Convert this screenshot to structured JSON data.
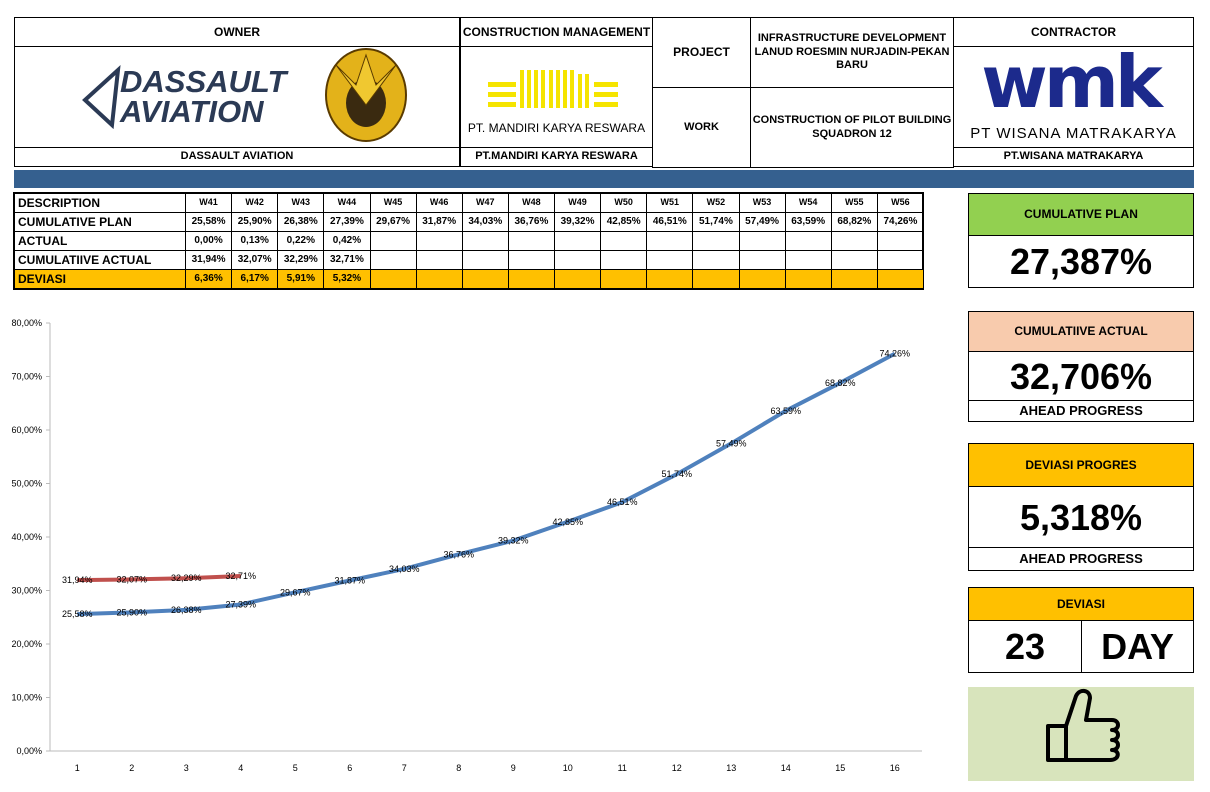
{
  "header": {
    "owner": {
      "title": "OWNER",
      "logo": [
        "DASSAULT",
        "AVIATION"
      ],
      "name": "DASSAULT AVIATION"
    },
    "construction_management": {
      "title": "CONSTRUCTION MANAGEMENT",
      "logo_text": "PT. MANDIRI KARYA RESWARA",
      "name": "PT.MANDIRI KARYA RESWARA"
    },
    "project": {
      "label": "PROJECT",
      "value": "INFRASTRUCTURE DEVELOPMENT LANUD ROESMIN NURJADIN-PEKAN BARU"
    },
    "work": {
      "label": "WORK",
      "value": "CONSTRUCTION OF PILOT BUILDING SQUADRON 12"
    },
    "contractor": {
      "title": "CONTRACTOR",
      "logo": "wmk",
      "logo_text": "PT WISANA MATRAKARYA",
      "name": "PT.WISANA MATRAKARYA"
    }
  },
  "table": {
    "header": [
      "DESCRIPTION",
      "W41",
      "W42",
      "W43",
      "W44",
      "W45",
      "W46",
      "W47",
      "W48",
      "W49",
      "W50",
      "W51",
      "W52",
      "W53",
      "W54",
      "W55",
      "W56"
    ],
    "rows": [
      [
        "CUMULATIVE PLAN",
        "25,58%",
        "25,90%",
        "26,38%",
        "27,39%",
        "29,67%",
        "31,87%",
        "34,03%",
        "36,76%",
        "39,32%",
        "42,85%",
        "46,51%",
        "51,74%",
        "57,49%",
        "63,59%",
        "68,82%",
        "74,26%"
      ],
      [
        "ACTUAL",
        "0,00%",
        "0,13%",
        "0,22%",
        "0,42%"
      ],
      [
        "CUMULATIIVE ACTUAL",
        "31,94%",
        "32,07%",
        "32,29%",
        "32,71%"
      ],
      [
        "DEVIASI",
        "6,36%",
        "6,17%",
        "5,91%",
        "5,32%"
      ]
    ]
  },
  "panels": [
    {
      "title": "CUMULATIVE PLAN",
      "value": "27,387%"
    },
    {
      "title": "CUMULATIIVE ACTUAL",
      "value": "32,706%",
      "note": "AHEAD PROGRESS"
    },
    {
      "title": "DEVIASI PROGRES",
      "value": "5,318%",
      "note": "AHEAD PROGRESS"
    },
    {
      "title": "DEVIASI",
      "value": "23",
      "unit": "DAY"
    }
  ],
  "chart_data": {
    "type": "line",
    "categories": [
      "1",
      "2",
      "3",
      "4",
      "5",
      "6",
      "7",
      "8",
      "9",
      "10",
      "11",
      "12",
      "13",
      "14",
      "15",
      "16"
    ],
    "series": [
      {
        "color": "#4f81bd",
        "values": [
          25.58,
          25.9,
          26.38,
          27.39,
          29.67,
          31.87,
          34.03,
          36.76,
          39.32,
          42.85,
          46.51,
          51.74,
          57.49,
          63.59,
          68.82,
          74.26
        ],
        "value_labels": [
          "25,58%",
          "25,90%",
          "26,38%",
          "27,39%",
          "29,67%",
          "31,87%",
          "34,03%",
          "36,76%",
          "39,32%",
          "42,85%",
          "46,51%",
          "51,74%",
          "57,49%",
          "63,59%",
          "68,82%",
          "74,26%"
        ]
      },
      {
        "color": "#c0504d",
        "values": [
          31.94,
          32.07,
          32.29,
          32.71,
          null,
          null,
          null,
          null,
          null,
          null,
          null,
          null,
          null,
          null,
          null,
          null
        ],
        "value_labels": [
          "31,94%",
          "32,07%",
          "32,29%",
          "32,71%",
          null,
          null,
          null,
          null,
          null,
          null,
          null,
          null,
          null,
          null,
          null,
          null
        ]
      }
    ],
    "ylim": [
      0,
      80
    ],
    "yticks": [
      {
        "value": 0,
        "label": "0,00%"
      },
      {
        "value": 10,
        "label": "10,00%"
      },
      {
        "value": 20,
        "label": "20,00%"
      },
      {
        "value": 30,
        "label": "30,00%"
      },
      {
        "value": 40,
        "label": "40,00%"
      },
      {
        "value": 50,
        "label": "50,00%"
      },
      {
        "value": 60,
        "label": "60,00%"
      },
      {
        "value": 70,
        "label": "70,00%"
      },
      {
        "value": 80,
        "label": "80,00%"
      }
    ],
    "grid": false
  }
}
